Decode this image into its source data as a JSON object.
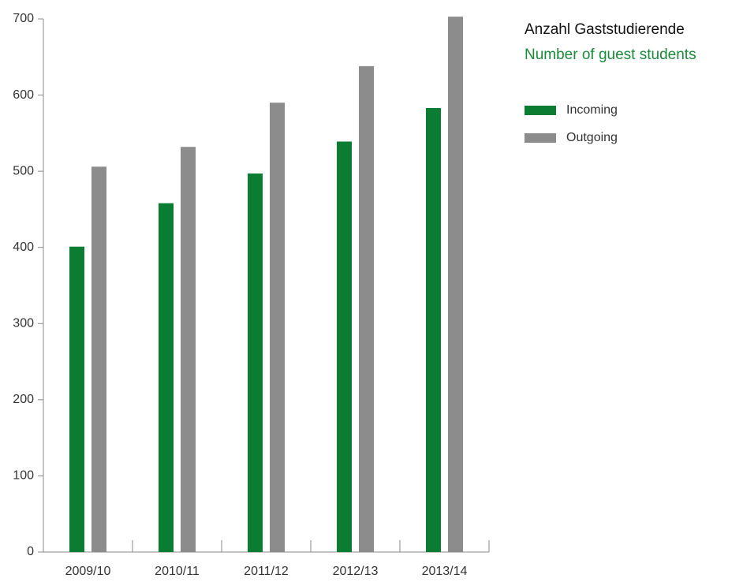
{
  "chart_data": {
    "type": "bar",
    "title": "Anzahl Gaststudierende",
    "subtitle": "Number of guest students",
    "categories": [
      "2009/10",
      "2010/11",
      "2011/12",
      "2012/13",
      "2013/14"
    ],
    "series": [
      {
        "name": "Incoming",
        "color": "#0a7d32",
        "values": [
          401,
          458,
          497,
          539,
          583
        ]
      },
      {
        "name": "Outgoing",
        "color": "#8c8c8c",
        "values": [
          506,
          532,
          590,
          638,
          703
        ]
      }
    ],
    "ylim": [
      0,
      700
    ],
    "yticks": [
      0,
      100,
      200,
      300,
      400,
      500,
      600,
      700
    ]
  }
}
